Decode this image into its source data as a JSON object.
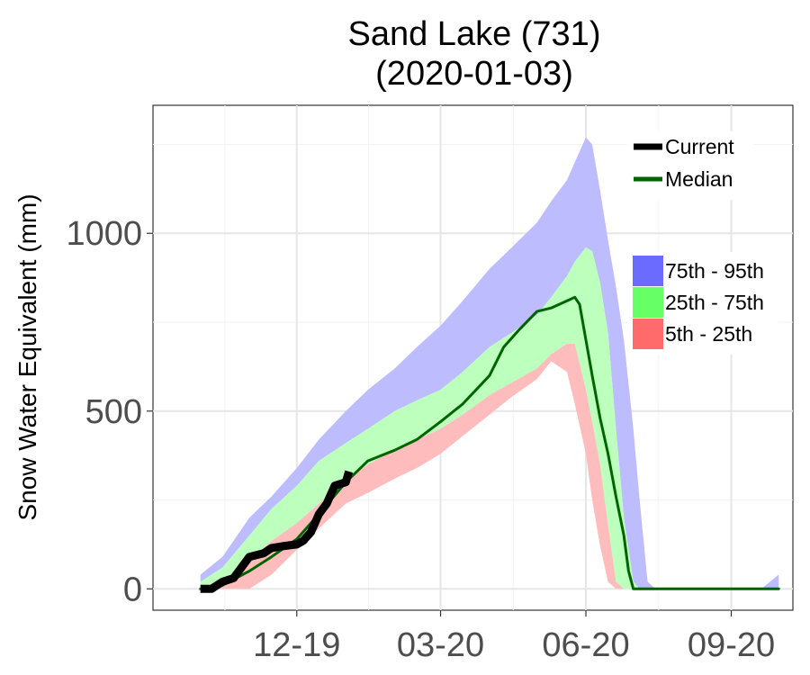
{
  "chart_data": {
    "type": "area",
    "title": "Sand Lake (731)",
    "subtitle": "(2020-01-03)",
    "xlabel": "",
    "ylabel": "Snow Water Equivalent (mm)",
    "x_unit": "date",
    "xlim": [
      "2019-09-01",
      "2020-10-10"
    ],
    "ylim": [
      -60,
      1360
    ],
    "x_ticks": [
      {
        "value": "2019-12-01",
        "label": "12-19"
      },
      {
        "value": "2020-03-01",
        "label": "03-20"
      },
      {
        "value": "2020-06-01",
        "label": "06-20"
      },
      {
        "value": "2020-09-01",
        "label": "09-20"
      }
    ],
    "y_ticks": [
      0,
      500,
      1000
    ],
    "grid": true,
    "legend": {
      "position": "top-right",
      "lines": [
        {
          "name": "Current",
          "color": "#000000"
        },
        {
          "name": "Median",
          "color": "#006400"
        }
      ],
      "bands": [
        {
          "name": "75th - 95th",
          "color": "#6b6bff"
        },
        {
          "name": "25th - 75th",
          "color": "#66ff66"
        },
        {
          "name": "5th - 25th",
          "color": "#ff6b6b"
        }
      ]
    },
    "percentiles": {
      "dates": [
        "2019-10-01",
        "2019-10-15",
        "2019-11-01",
        "2019-11-15",
        "2019-12-01",
        "2019-12-15",
        "2020-01-01",
        "2020-01-15",
        "2020-02-01",
        "2020-02-15",
        "2020-03-01",
        "2020-03-15",
        "2020-04-01",
        "2020-04-15",
        "2020-05-01",
        "2020-05-10",
        "2020-05-20",
        "2020-05-25",
        "2020-06-01",
        "2020-06-05",
        "2020-06-10",
        "2020-06-15",
        "2020-06-20",
        "2020-06-25",
        "2020-07-01",
        "2020-07-05",
        "2020-07-10",
        "2020-07-15",
        "2020-07-20",
        "2020-09-20",
        "2020-10-01"
      ],
      "p5": [
        0,
        0,
        0,
        40,
        110,
        170,
        240,
        270,
        310,
        340,
        380,
        430,
        490,
        540,
        590,
        640,
        610,
        520,
        380,
        250,
        120,
        20,
        0,
        0,
        0,
        0,
        0,
        0,
        0,
        0,
        0
      ],
      "p25": [
        0,
        20,
        80,
        135,
        185,
        240,
        305,
        350,
        390,
        420,
        450,
        490,
        545,
        580,
        620,
        660,
        690,
        690,
        560,
        470,
        350,
        180,
        20,
        0,
        0,
        0,
        0,
        0,
        0,
        0,
        0
      ],
      "p75": [
        20,
        60,
        150,
        225,
        290,
        360,
        410,
        450,
        500,
        530,
        560,
        610,
        680,
        720,
        770,
        820,
        880,
        920,
        960,
        950,
        860,
        720,
        450,
        200,
        20,
        0,
        0,
        0,
        0,
        0,
        0
      ],
      "p95": [
        40,
        90,
        200,
        260,
        340,
        420,
        500,
        560,
        620,
        680,
        740,
        810,
        900,
        960,
        1030,
        1090,
        1150,
        1200,
        1270,
        1250,
        1120,
        980,
        850,
        700,
        450,
        250,
        20,
        0,
        0,
        0,
        40
      ]
    },
    "series": [
      {
        "name": "Median",
        "color": "#006400",
        "x": [
          "2019-10-01",
          "2019-10-15",
          "2019-11-01",
          "2019-11-15",
          "2019-12-01",
          "2019-12-15",
          "2020-01-01",
          "2020-01-15",
          "2020-02-01",
          "2020-02-15",
          "2020-03-01",
          "2020-03-15",
          "2020-04-01",
          "2020-04-10",
          "2020-04-20",
          "2020-05-01",
          "2020-05-10",
          "2020-05-20",
          "2020-05-25",
          "2020-05-28",
          "2020-06-01",
          "2020-06-05",
          "2020-06-10",
          "2020-06-15",
          "2020-06-20",
          "2020-06-25",
          "2020-06-28",
          "2020-07-01",
          "2020-09-01",
          "2020-10-01"
        ],
        "values": [
          0,
          10,
          50,
          90,
          140,
          210,
          300,
          360,
          390,
          420,
          470,
          520,
          600,
          680,
          730,
          780,
          790,
          810,
          820,
          800,
          700,
          600,
          480,
          380,
          260,
          150,
          50,
          0,
          0,
          0
        ]
      },
      {
        "name": "Current",
        "color": "#000000",
        "x": [
          "2019-10-01",
          "2019-10-08",
          "2019-10-15",
          "2019-10-22",
          "2019-11-01",
          "2019-11-10",
          "2019-11-15",
          "2019-11-22",
          "2019-12-01",
          "2019-12-05",
          "2019-12-10",
          "2019-12-15",
          "2019-12-20",
          "2019-12-25",
          "2020-01-01",
          "2020-01-03"
        ],
        "values": [
          0,
          0,
          20,
          30,
          90,
          100,
          115,
          120,
          125,
          135,
          160,
          210,
          240,
          290,
          300,
          330
        ]
      }
    ]
  }
}
